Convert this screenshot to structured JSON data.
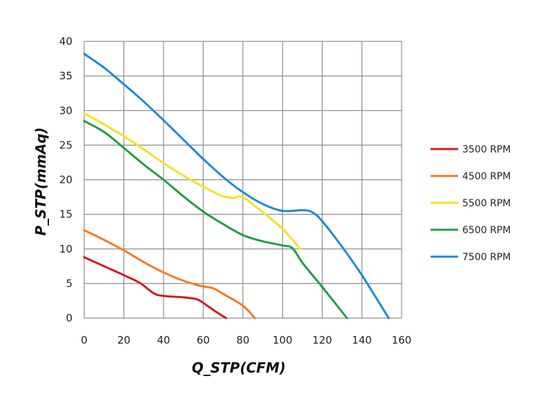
{
  "chart_data": {
    "type": "line",
    "title": "",
    "xlabel": "Q_STP(CFM)",
    "ylabel": "P_STP(mmAq)",
    "xlim": [
      0,
      160
    ],
    "ylim": [
      0,
      40
    ],
    "x_ticks": [
      0,
      20,
      40,
      60,
      80,
      100,
      120,
      140,
      160
    ],
    "y_ticks": [
      0,
      5,
      10,
      15,
      20,
      25,
      30,
      35,
      40
    ],
    "grid": true,
    "legend_position": "right",
    "series": [
      {
        "name": "3500 RPM",
        "color": "#d7191c",
        "points": [
          [
            0,
            8.8
          ],
          [
            10,
            7.5
          ],
          [
            20,
            6.2
          ],
          [
            28,
            5.1
          ],
          [
            35,
            3.6
          ],
          [
            40,
            3.2
          ],
          [
            50,
            3.0
          ],
          [
            57,
            2.7
          ],
          [
            62,
            1.8
          ],
          [
            66,
            1.0
          ],
          [
            71.5,
            0
          ]
        ]
      },
      {
        "name": "4500 RPM",
        "color": "#f47a20",
        "points": [
          [
            0,
            12.7
          ],
          [
            10,
            11.3
          ],
          [
            20,
            9.8
          ],
          [
            30,
            8.1
          ],
          [
            40,
            6.6
          ],
          [
            50,
            5.4
          ],
          [
            58,
            4.7
          ],
          [
            65,
            4.3
          ],
          [
            70,
            3.5
          ],
          [
            80,
            1.8
          ],
          [
            86,
            0
          ]
        ]
      },
      {
        "name": "5500 RPM",
        "color": "#f2e31d",
        "points": [
          [
            0,
            29.6
          ],
          [
            10,
            28.0
          ],
          [
            20,
            26.3
          ],
          [
            30,
            24.4
          ],
          [
            40,
            22.4
          ],
          [
            50,
            20.6
          ],
          [
            60,
            19.0
          ],
          [
            70,
            17.6
          ],
          [
            76,
            17.4
          ],
          [
            80,
            17.5
          ],
          [
            90,
            15.3
          ],
          [
            100,
            12.9
          ],
          [
            109,
            10.0
          ]
        ]
      },
      {
        "name": "6500 RPM",
        "color": "#1f9e45",
        "points": [
          [
            0,
            28.5
          ],
          [
            10,
            26.9
          ],
          [
            20,
            24.6
          ],
          [
            30,
            22.2
          ],
          [
            40,
            20.0
          ],
          [
            50,
            17.6
          ],
          [
            60,
            15.4
          ],
          [
            70,
            13.6
          ],
          [
            80,
            12.0
          ],
          [
            90,
            11.1
          ],
          [
            100,
            10.5
          ],
          [
            105,
            10.1
          ],
          [
            110,
            8.0
          ],
          [
            120,
            4.5
          ],
          [
            132.5,
            0
          ]
        ]
      },
      {
        "name": "7500 RPM",
        "color": "#1c8ad8",
        "points": [
          [
            0,
            38.2
          ],
          [
            10,
            36.2
          ],
          [
            20,
            33.8
          ],
          [
            30,
            31.3
          ],
          [
            40,
            28.6
          ],
          [
            50,
            25.8
          ],
          [
            60,
            23.0
          ],
          [
            70,
            20.4
          ],
          [
            80,
            18.2
          ],
          [
            90,
            16.5
          ],
          [
            100,
            15.5
          ],
          [
            110,
            15.6
          ],
          [
            115,
            15.3
          ],
          [
            120,
            14.0
          ],
          [
            130,
            10.3
          ],
          [
            140,
            6.2
          ],
          [
            153.5,
            0
          ]
        ]
      }
    ]
  }
}
